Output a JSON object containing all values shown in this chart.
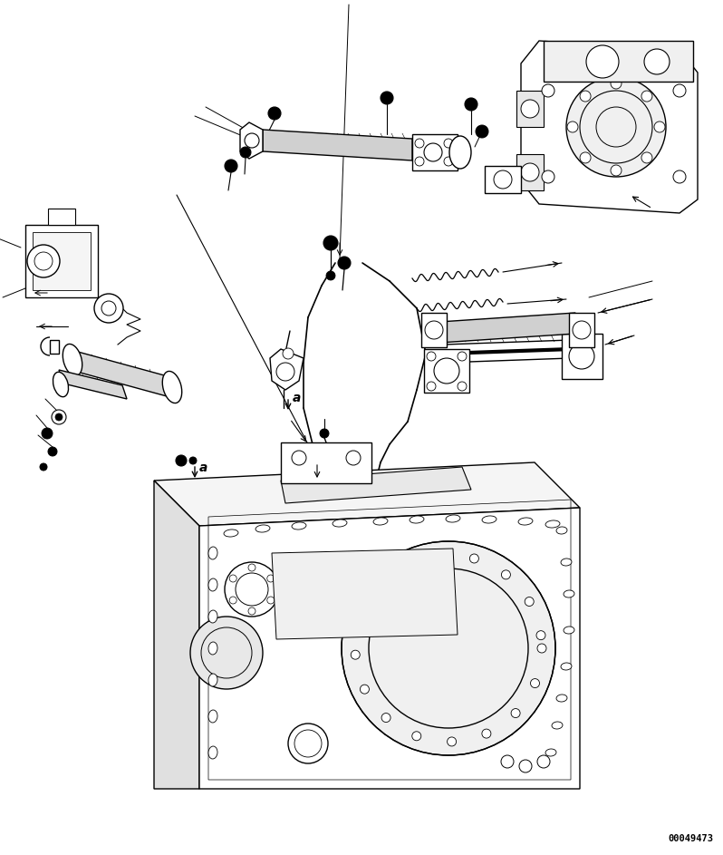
{
  "background_color": "#ffffff",
  "part_number": "00049473",
  "fig_width": 7.98,
  "fig_height": 9.43,
  "dpi": 100,
  "line_color": "#000000",
  "lw": 1.0
}
